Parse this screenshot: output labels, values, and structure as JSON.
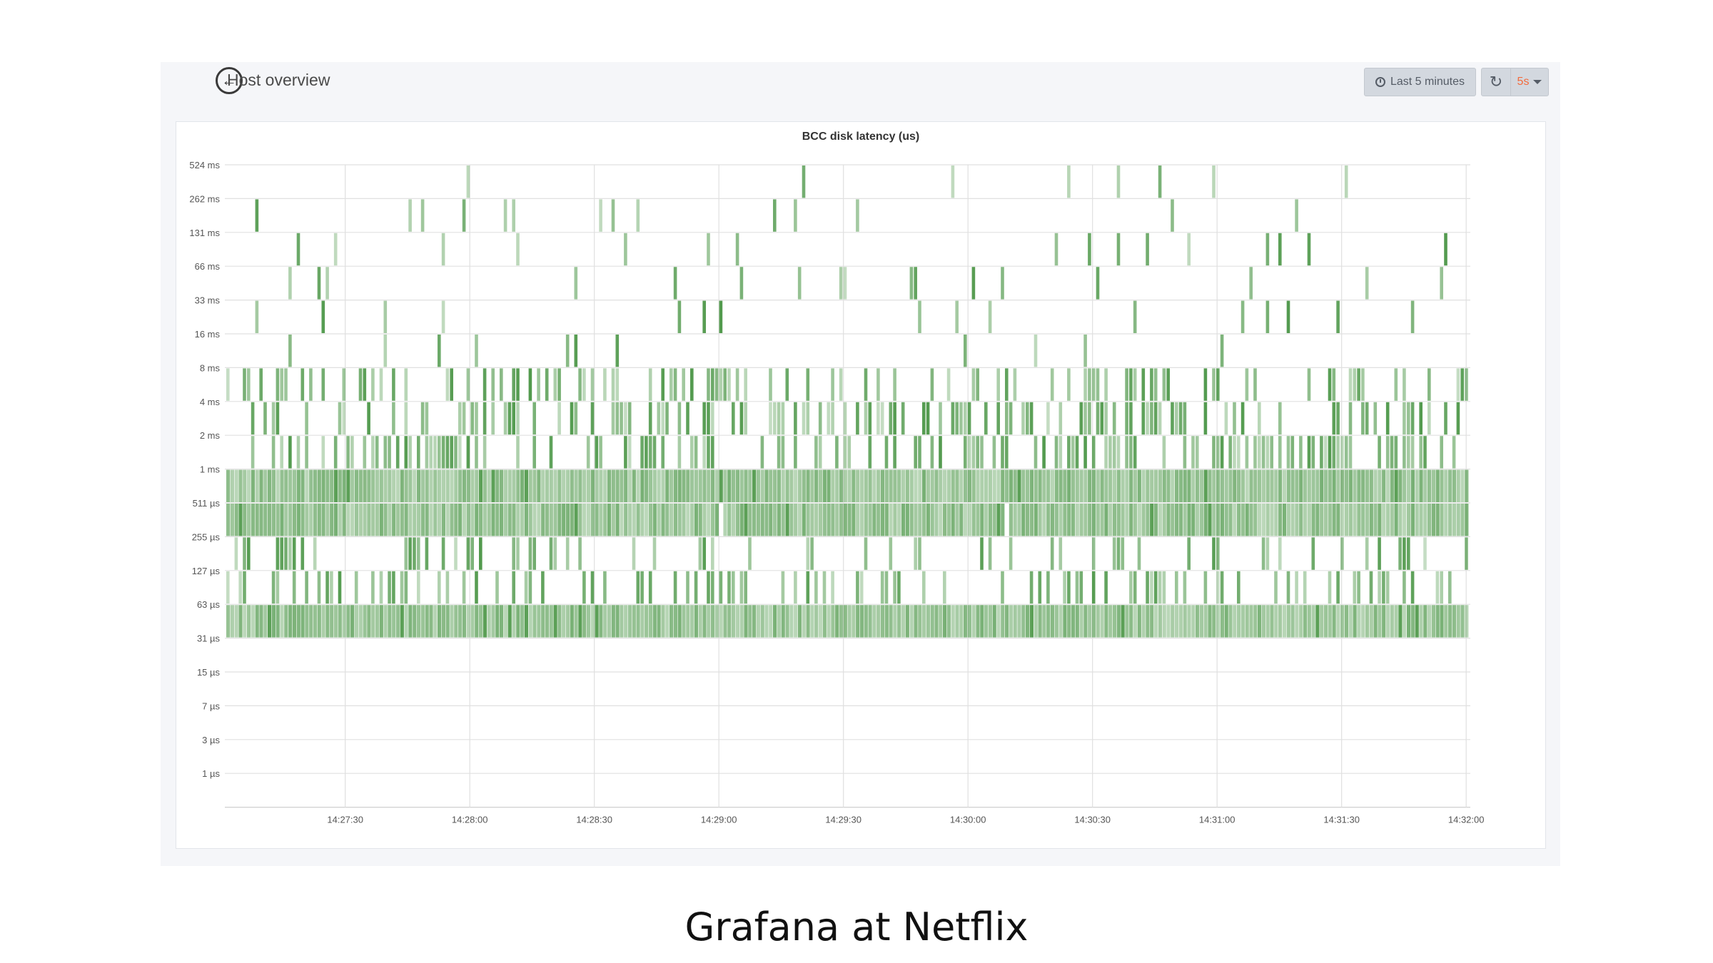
{
  "dashboard": {
    "title": "Host overview",
    "time_range_label": "Last 5 minutes",
    "refresh_interval": "5s",
    "accent_color": "#f36b3d"
  },
  "icons": {
    "back": "back-arrow-icon",
    "time": "clock-icon",
    "refresh": "refresh-icon",
    "dropdown": "chevron-down-icon"
  },
  "chart_data": {
    "type": "heatmap",
    "title": "BCC disk latency (us)",
    "y_buckets": [
      "524 ms",
      "262 ms",
      "131 ms",
      "66 ms",
      "33 ms",
      "16 ms",
      "8 ms",
      "4 ms",
      "2 ms",
      "1 ms",
      "511 µs",
      "255 µs",
      "127 µs",
      "63 µs",
      "31 µs",
      "15 µs",
      "7 µs",
      "3 µs",
      "1 µs"
    ],
    "x_ticks": [
      "14:27:30",
      "14:28:00",
      "14:28:30",
      "14:29:00",
      "14:29:30",
      "14:30:00",
      "14:30:30",
      "14:31:00",
      "14:31:30",
      "14:32:00"
    ],
    "x_range": [
      "14:27:01",
      "14:32:01"
    ],
    "color_scheme": "green",
    "grid": true,
    "row_density": {
      "262 ms–524 ms": 0.03,
      "131 ms–262 ms": 0.05,
      "66 ms–131 ms": 0.05,
      "33 ms–66 ms": 0.05,
      "16 ms–33 ms": 0.04,
      "8 ms–16 ms": 0.03,
      "4 ms–8 ms": 0.32,
      "2 ms–4 ms": 0.36,
      "1 ms–2 ms": 0.36,
      "511 µs–1 ms": 0.995,
      "255 µs–511 µs": 0.995,
      "127 µs–255 µs": 0.18,
      "63 µs–127 µs": 0.3,
      "31 µs–63 µs": 1.0,
      "15 µs–31 µs": 0,
      "7 µs–15 µs": 0,
      "3 µs–7 µs": 0,
      "1 µs–3 µs": 0
    }
  },
  "caption": "Grafana at Netflix"
}
